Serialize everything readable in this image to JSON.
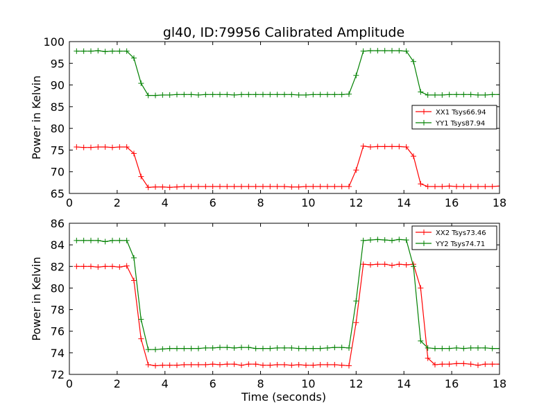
{
  "figure": {
    "title": "gl40, ID:79956 Calibrated Amplitude",
    "xlabel": "Time (seconds)"
  },
  "colors": {
    "xx": "#ff0000",
    "yy": "#008000"
  },
  "chart_data": [
    {
      "type": "line",
      "ylabel": "Power in Kelvin",
      "xlim": [
        0,
        18
      ],
      "ylim": [
        65,
        100
      ],
      "xticks": [
        0,
        2,
        4,
        6,
        8,
        10,
        12,
        14,
        16,
        18
      ],
      "yticks": [
        65,
        70,
        75,
        80,
        85,
        90,
        95,
        100
      ],
      "grid": false,
      "legend_position": "right",
      "x": [
        0.3,
        0.6,
        0.9,
        1.2,
        1.5,
        1.8,
        2.1,
        2.4,
        2.7,
        3.0,
        3.3,
        3.6,
        3.9,
        4.2,
        4.5,
        4.8,
        5.1,
        5.4,
        5.7,
        6.0,
        6.3,
        6.6,
        6.9,
        7.2,
        7.5,
        7.8,
        8.1,
        8.4,
        8.7,
        9.0,
        9.3,
        9.6,
        9.9,
        10.2,
        10.5,
        10.8,
        11.1,
        11.4,
        11.7,
        12.0,
        12.3,
        12.6,
        12.9,
        13.2,
        13.5,
        13.8,
        14.1,
        14.4,
        14.7,
        15.0,
        15.3,
        15.6,
        15.9,
        16.2,
        16.5,
        16.8,
        17.1,
        17.4,
        17.7,
        18.0
      ],
      "series": [
        {
          "name": "XX1 Tsys66.94",
          "color": "#ff0000",
          "values": [
            75.7,
            75.6,
            75.6,
            75.7,
            75.7,
            75.6,
            75.7,
            75.7,
            74.2,
            68.9,
            66.4,
            66.5,
            66.5,
            66.4,
            66.5,
            66.6,
            66.6,
            66.6,
            66.6,
            66.6,
            66.6,
            66.6,
            66.6,
            66.6,
            66.6,
            66.6,
            66.6,
            66.6,
            66.6,
            66.6,
            66.5,
            66.5,
            66.6,
            66.6,
            66.6,
            66.6,
            66.6,
            66.6,
            66.6,
            70.4,
            75.9,
            75.7,
            75.8,
            75.8,
            75.8,
            75.8,
            75.7,
            73.6,
            67.2,
            66.6,
            66.6,
            66.6,
            66.7,
            66.6,
            66.6,
            66.6,
            66.6,
            66.6,
            66.6,
            66.7
          ]
        },
        {
          "name": "YY1 Tsys87.94",
          "color": "#008000",
          "values": [
            97.8,
            97.8,
            97.8,
            97.9,
            97.7,
            97.8,
            97.8,
            97.8,
            96.2,
            90.4,
            87.6,
            87.6,
            87.7,
            87.7,
            87.8,
            87.8,
            87.8,
            87.7,
            87.8,
            87.8,
            87.8,
            87.8,
            87.7,
            87.8,
            87.8,
            87.8,
            87.8,
            87.8,
            87.8,
            87.8,
            87.8,
            87.7,
            87.7,
            87.8,
            87.8,
            87.8,
            87.8,
            87.8,
            87.9,
            92.2,
            97.8,
            97.9,
            97.9,
            97.9,
            97.9,
            97.9,
            97.8,
            95.4,
            88.4,
            87.7,
            87.7,
            87.7,
            87.8,
            87.8,
            87.8,
            87.8,
            87.7,
            87.7,
            87.8,
            87.8
          ]
        }
      ]
    },
    {
      "type": "line",
      "ylabel": "Power in Kelvin",
      "xlim": [
        0,
        18
      ],
      "ylim": [
        72,
        86
      ],
      "xticks": [
        0,
        2,
        4,
        6,
        8,
        10,
        12,
        14,
        16,
        18
      ],
      "yticks": [
        72,
        74,
        76,
        78,
        80,
        82,
        84,
        86
      ],
      "grid": false,
      "legend_position": "top-right",
      "x": [
        0.3,
        0.6,
        0.9,
        1.2,
        1.5,
        1.8,
        2.1,
        2.4,
        2.7,
        3.0,
        3.3,
        3.6,
        3.9,
        4.2,
        4.5,
        4.8,
        5.1,
        5.4,
        5.7,
        6.0,
        6.3,
        6.6,
        6.9,
        7.2,
        7.5,
        7.8,
        8.1,
        8.4,
        8.7,
        9.0,
        9.3,
        9.6,
        9.9,
        10.2,
        10.5,
        10.8,
        11.1,
        11.4,
        11.7,
        12.0,
        12.3,
        12.6,
        12.9,
        13.2,
        13.5,
        13.8,
        14.1,
        14.4,
        14.7,
        15.0,
        15.3,
        15.6,
        15.9,
        16.2,
        16.5,
        16.8,
        17.1,
        17.4,
        17.7,
        18.0
      ],
      "series": [
        {
          "name": "XX2 Tsys73.46",
          "color": "#ff0000",
          "values": [
            82.0,
            82.0,
            82.0,
            81.95,
            82.0,
            82.0,
            81.95,
            82.05,
            80.7,
            75.3,
            72.9,
            72.8,
            72.85,
            72.85,
            72.85,
            72.9,
            72.9,
            72.9,
            72.9,
            72.95,
            72.9,
            72.95,
            72.95,
            72.85,
            72.95,
            72.95,
            72.85,
            72.85,
            72.9,
            72.9,
            72.85,
            72.9,
            72.85,
            72.85,
            72.9,
            72.9,
            72.9,
            72.85,
            72.8,
            76.8,
            82.2,
            82.15,
            82.2,
            82.2,
            82.1,
            82.2,
            82.15,
            82.2,
            80.0,
            73.5,
            72.9,
            72.95,
            72.95,
            73.0,
            73.0,
            72.95,
            72.85,
            72.95,
            72.95,
            72.95
          ]
        },
        {
          "name": "YY2 Tsys74.71",
          "color": "#008000",
          "values": [
            84.4,
            84.4,
            84.4,
            84.4,
            84.3,
            84.4,
            84.4,
            84.4,
            82.8,
            77.1,
            74.3,
            74.3,
            74.35,
            74.4,
            74.4,
            74.4,
            74.4,
            74.4,
            74.45,
            74.45,
            74.5,
            74.5,
            74.45,
            74.5,
            74.5,
            74.4,
            74.4,
            74.4,
            74.45,
            74.45,
            74.45,
            74.4,
            74.4,
            74.4,
            74.4,
            74.45,
            74.5,
            74.5,
            74.45,
            78.8,
            84.4,
            84.45,
            84.5,
            84.45,
            84.4,
            84.5,
            84.45,
            82.0,
            75.1,
            74.45,
            74.4,
            74.4,
            74.4,
            74.45,
            74.4,
            74.45,
            74.45,
            74.45,
            74.4,
            74.4
          ]
        }
      ]
    }
  ]
}
